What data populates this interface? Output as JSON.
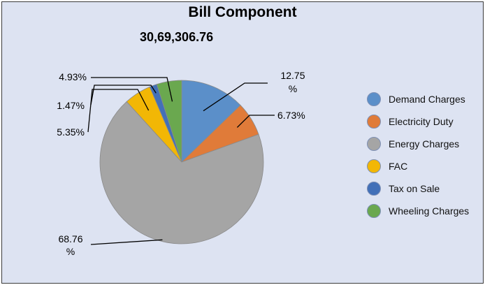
{
  "chart_data": {
    "type": "pie",
    "title": "Bill Component",
    "subtitle": "30,69,306.76",
    "legend_position": "right",
    "slices": [
      {
        "name": "Demand Charges",
        "percent": 12.75,
        "label": [
          "12.75",
          "%"
        ],
        "color": "#5b8fc9"
      },
      {
        "name": "Electricity Duty",
        "percent": 6.73,
        "label": [
          "6.73%"
        ],
        "color": "#e07b39"
      },
      {
        "name": "Energy Charges",
        "percent": 68.76,
        "label": [
          "68.76",
          "%"
        ],
        "color": "#a5a5a5"
      },
      {
        "name": "FAC",
        "percent": 5.35,
        "label": [
          "5.35%"
        ],
        "color": "#f2b705"
      },
      {
        "name": "Tax on Sale",
        "percent": 1.47,
        "label": [
          "1.47%"
        ],
        "color": "#4270b8"
      },
      {
        "name": "Wheeling Charges",
        "percent": 4.93,
        "label": [
          "4.93%"
        ],
        "color": "#6aa84f"
      }
    ]
  }
}
